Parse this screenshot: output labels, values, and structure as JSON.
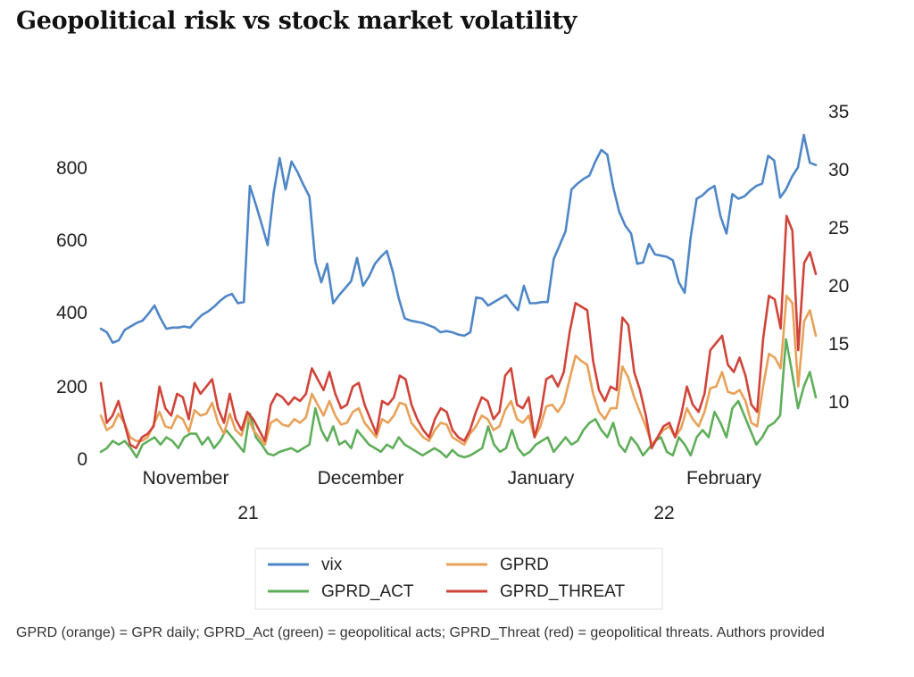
{
  "title": "Geopolitical risk vs stock market volatility",
  "caption": "GPRD (orange) = GPR daily; GPRD_Act (green) = geopolitical acts; GPRD_Threat (red) = geopolitical threats. Authors provided",
  "colors": {
    "vix": "#4f86c6",
    "gprd": "#e8a159",
    "gprd_act": "#5fae5a",
    "gprd_threat": "#d0443a"
  },
  "chart_data": {
    "type": "line",
    "x_label_months": [
      "November",
      "December",
      "January",
      "February"
    ],
    "x_label_years": [
      "21",
      "22"
    ],
    "y_left": {
      "ticks": [
        "0",
        "200",
        "400",
        "600",
        "800"
      ],
      "range": [
        0,
        900
      ]
    },
    "y_right": {
      "ticks": [
        "10",
        "15",
        "20",
        "25",
        "30",
        "35"
      ],
      "range": [
        5,
        35
      ]
    },
    "legend": [
      "vix",
      "GPRD",
      "GPRD_ACT",
      "GPRD_THREAT"
    ],
    "series": [
      {
        "name": "vix",
        "axis": "right",
        "color_key": "vix",
        "values": [
          16.3,
          16.0,
          15.1,
          15.3,
          16.2,
          16.5,
          16.8,
          17.0,
          17.6,
          18.3,
          17.2,
          16.3,
          16.4,
          16.4,
          16.5,
          16.4,
          17.0,
          17.5,
          17.8,
          18.2,
          18.7,
          19.1,
          19.3,
          18.5,
          18.6,
          28.6,
          27.0,
          25.3,
          23.5,
          28.0,
          31.0,
          28.3,
          30.7,
          29.8,
          28.7,
          27.7,
          22.1,
          20.3,
          21.9,
          18.5,
          19.2,
          19.8,
          20.4,
          22.4,
          20.0,
          20.8,
          21.9,
          22.5,
          23.0,
          21.2,
          18.9,
          17.2,
          17.0,
          16.9,
          16.8,
          16.6,
          16.4,
          16.0,
          16.1,
          16.0,
          15.8,
          15.7,
          16.0,
          19.0,
          18.9,
          18.3,
          18.6,
          18.9,
          19.2,
          18.5,
          17.9,
          20.0,
          18.5,
          18.5,
          18.6,
          18.6,
          22.3,
          23.5,
          24.7,
          28.3,
          28.8,
          29.2,
          29.5,
          30.7,
          31.7,
          31.3,
          28.5,
          26.4,
          25.2,
          24.5,
          21.9,
          22.0,
          23.6,
          22.7,
          22.6,
          22.5,
          22.2,
          20.3,
          19.4,
          24.2,
          27.5,
          27.8,
          28.3,
          28.6,
          26.0,
          24.5,
          27.9,
          27.5,
          27.7,
          28.2,
          28.6,
          28.8,
          31.2,
          30.8,
          27.6,
          28.3,
          29.4,
          30.2,
          33.0,
          30.6,
          30.4
        ]
      },
      {
        "name": "GPRD",
        "axis": "left",
        "color_key": "gprd",
        "values": [
          120,
          80,
          90,
          125,
          100,
          60,
          50,
          50,
          60,
          95,
          130,
          90,
          85,
          120,
          110,
          75,
          135,
          120,
          125,
          155,
          100,
          70,
          125,
          80,
          65,
          120,
          80,
          60,
          40,
          100,
          110,
          95,
          90,
          110,
          100,
          115,
          180,
          150,
          120,
          160,
          120,
          95,
          100,
          130,
          140,
          100,
          80,
          60,
          110,
          100,
          120,
          155,
          150,
          100,
          80,
          60,
          50,
          80,
          100,
          95,
          60,
          50,
          40,
          70,
          90,
          120,
          110,
          80,
          90,
          135,
          160,
          110,
          100,
          120,
          60,
          90,
          145,
          150,
          130,
          155,
          220,
          285,
          270,
          260,
          180,
          130,
          110,
          140,
          140,
          255,
          225,
          170,
          130,
          90,
          40,
          60,
          80,
          90,
          60,
          85,
          140,
          110,
          90,
          130,
          195,
          200,
          240,
          185,
          180,
          190,
          160,
          100,
          90,
          200,
          290,
          280,
          250,
          450,
          430,
          200,
          380,
          410,
          340
        ]
      },
      {
        "name": "GPRD_ACT",
        "axis": "left",
        "color_key": "gprd_act",
        "values": [
          20,
          30,
          50,
          40,
          50,
          30,
          5,
          40,
          50,
          60,
          40,
          60,
          50,
          30,
          60,
          70,
          70,
          40,
          60,
          30,
          50,
          80,
          60,
          40,
          20,
          125,
          60,
          40,
          15,
          10,
          20,
          25,
          30,
          20,
          30,
          40,
          140,
          80,
          50,
          90,
          40,
          50,
          30,
          80,
          60,
          40,
          30,
          20,
          40,
          30,
          60,
          40,
          30,
          20,
          10,
          20,
          30,
          20,
          5,
          25,
          10,
          5,
          10,
          20,
          30,
          90,
          40,
          20,
          30,
          80,
          30,
          10,
          20,
          40,
          50,
          60,
          20,
          40,
          60,
          40,
          50,
          80,
          100,
          110,
          80,
          60,
          100,
          40,
          20,
          60,
          40,
          10,
          30,
          50,
          60,
          20,
          10,
          60,
          40,
          10,
          60,
          80,
          60,
          130,
          100,
          60,
          140,
          160,
          120,
          80,
          40,
          60,
          90,
          100,
          120,
          330,
          240,
          140,
          200,
          240,
          170
        ]
      },
      {
        "name": "GPRD_THREAT",
        "axis": "left",
        "color_key": "gprd_threat",
        "values": [
          210,
          100,
          120,
          160,
          100,
          40,
          30,
          60,
          70,
          90,
          200,
          140,
          120,
          180,
          170,
          110,
          210,
          180,
          200,
          220,
          140,
          100,
          180,
          110,
          80,
          130,
          110,
          80,
          50,
          150,
          180,
          170,
          150,
          170,
          160,
          180,
          250,
          220,
          190,
          240,
          180,
          140,
          150,
          200,
          210,
          150,
          110,
          70,
          160,
          150,
          170,
          230,
          220,
          150,
          110,
          80,
          60,
          110,
          140,
          130,
          80,
          60,
          50,
          80,
          130,
          170,
          160,
          110,
          130,
          230,
          250,
          150,
          140,
          170,
          60,
          120,
          220,
          230,
          200,
          240,
          350,
          430,
          420,
          410,
          270,
          190,
          160,
          200,
          190,
          390,
          370,
          240,
          190,
          120,
          30,
          60,
          90,
          100,
          60,
          120,
          200,
          150,
          130,
          180,
          300,
          320,
          340,
          260,
          240,
          280,
          230,
          150,
          130,
          330,
          450,
          440,
          360,
          670,
          630,
          300,
          540,
          570,
          510
        ]
      }
    ]
  }
}
